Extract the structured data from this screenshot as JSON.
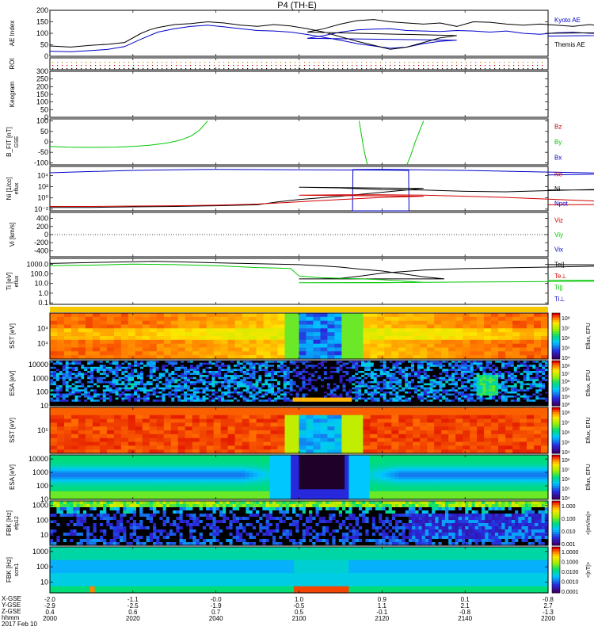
{
  "title": "P4 (TH-E)",
  "date_label": "2017 Feb 10",
  "colors": {
    "kyoto": "#0000c8",
    "themis": "#000000",
    "red": "#d00000",
    "green": "#00c800",
    "blue": "#0000c8"
  },
  "chart_data": [
    {
      "name": "ae",
      "type": "line",
      "ylabel": "AE Index",
      "ylim": [
        0,
        200
      ],
      "yticks": [
        0,
        50,
        100,
        150,
        200
      ],
      "series": [
        {
          "name": "Kyoto AE",
          "color": "#0000c8",
          "x": [
            2000,
            2005,
            2010,
            2014,
            2018,
            2022,
            2026,
            2030,
            2034,
            2038,
            2042,
            2046,
            2050,
            2054,
            2058,
            2062,
            2066,
            2070,
            2074,
            2078,
            2082,
            2086,
            2090,
            2094,
            2098,
            2102,
            2106,
            2110,
            2114,
            2118,
            2122,
            2126,
            2130,
            2134,
            2138,
            2142,
            2146,
            2150,
            2154,
            2158,
            2162,
            2166,
            2170,
            2174,
            2178,
            2182,
            2186,
            2190,
            2194,
            2198,
            2200
          ],
          "y": [
            22,
            20,
            25,
            30,
            42,
            75,
            105,
            120,
            130,
            135,
            128,
            120,
            112,
            110,
            105,
            95,
            82,
            70,
            55,
            45,
            35,
            40,
            55,
            65,
            70,
            78,
            90,
            105,
            115,
            118,
            120,
            112,
            110,
            108,
            112,
            110,
            105,
            110,
            100,
            96,
            102,
            104,
            100,
            98,
            104,
            100,
            94,
            98,
            105,
            95,
            88
          ]
        },
        {
          "name": "Themis AE",
          "color": "#000000",
          "x": [
            2000,
            2005,
            2010,
            2014,
            2018,
            2022,
            2024,
            2026,
            2030,
            2034,
            2038,
            2042,
            2046,
            2050,
            2054,
            2058,
            2062,
            2066,
            2070,
            2074,
            2078,
            2082,
            2086,
            2090,
            2094,
            2098,
            2102,
            2106,
            2110,
            2114,
            2118,
            2122,
            2126,
            2130,
            2134,
            2138,
            2142,
            2146,
            2150,
            2154,
            2158,
            2162,
            2166,
            2170,
            2174,
            2178,
            2182,
            2186,
            2190,
            2194,
            2198,
            2200
          ],
          "y": [
            45,
            40,
            48,
            52,
            60,
            100,
            115,
            125,
            138,
            142,
            150,
            145,
            135,
            130,
            138,
            132,
            120,
            105,
            85,
            65,
            48,
            30,
            40,
            60,
            80,
            90,
            105,
            120,
            140,
            155,
            160,
            150,
            145,
            140,
            145,
            130,
            150,
            148,
            140,
            135,
            140,
            135,
            130,
            138,
            130,
            125,
            130,
            120,
            118,
            110,
            108,
            100
          ]
        }
      ]
    },
    {
      "name": "roi",
      "type": "scatter",
      "ylabel": "ROI",
      "yticks": [],
      "series": []
    },
    {
      "name": "keogram",
      "type": "line",
      "ylabel": "Keogram",
      "ylim": [
        0,
        300
      ],
      "yticks": [
        0,
        50,
        100,
        150,
        200,
        250,
        300
      ],
      "series": []
    },
    {
      "name": "bfit",
      "type": "line",
      "ylabel": "B_FIT [nT]",
      "ylabel_small": "GSE",
      "ylim": [
        -110,
        110
      ],
      "yticks": [
        -100,
        -50,
        0,
        50,
        100
      ],
      "legend": [
        "Bz",
        "By",
        "Bx"
      ],
      "legend_colors": [
        "#d00000",
        "#00c800",
        "#0000c8"
      ],
      "series": [
        {
          "name": "By",
          "color": "#00c800",
          "x": [
            2000,
            2004,
            2008,
            2012,
            2016,
            2020,
            2024,
            2028,
            2030,
            2032,
            2034,
            2036,
            2038
          ],
          "y": [
            -22,
            -25,
            -26,
            -26,
            -25,
            -22,
            -16,
            -6,
            2,
            12,
            28,
            55,
            100
          ]
        },
        {
          "name": "By",
          "color": "#00c800",
          "x": [
            2114.5,
            2115.0,
            2115.5,
            2116.0,
            2116.5
          ],
          "y": [
            100,
            40,
            -20,
            -70,
            -110
          ]
        },
        {
          "name": "By",
          "color": "#00c800",
          "x": [
            2126.0,
            2127.0,
            2128.0,
            2129.0,
            2130.0
          ],
          "y": [
            -110,
            -60,
            0,
            50,
            100
          ]
        }
      ]
    },
    {
      "name": "ni",
      "type": "line",
      "ylabel": "Ni [1/cc]",
      "ylabel_small": "eflux",
      "ylim": [
        0.005,
        400000
      ],
      "log": true,
      "yticks": [
        0.01,
        1,
        100,
        10000
      ],
      "ytick_labels": [
        "10⁻²",
        "10⁰",
        "10²",
        "10⁴"
      ],
      "legend": [
        "Ne",
        "Ni",
        "Npot"
      ],
      "legend_colors": [
        "#d00000",
        "#000000",
        "#0000c8"
      ],
      "series": [
        {
          "name": "Npot",
          "color": "#0000c8",
          "x": [
            2000,
            2010,
            2020,
            2030,
            2040,
            2050,
            2080,
            2086.4,
            2086.5,
            2086.6,
            2112.8,
            2112.9,
            2113.0,
            2120,
            2140,
            2160,
            2180,
            2200
          ],
          "y": [
            30000,
            50000,
            80000,
            100000,
            120000,
            110000,
            90000,
            80000,
            0.005,
            0.005,
            0.005,
            0.005,
            110000,
            120000,
            80000,
            40000,
            20000,
            12000
          ]
        },
        {
          "name": "Ni",
          "color": "#000000",
          "x": [
            2000,
            2010,
            2020,
            2030,
            2040,
            2050,
            2055,
            2060,
            2070,
            2080,
            2090,
            2100,
            2110,
            2120,
            2130,
            2140,
            2150,
            2160,
            2170,
            2180,
            2190,
            2200
          ],
          "y": [
            0.02,
            0.02,
            0.025,
            0.03,
            0.04,
            0.06,
            0.2,
            0.5,
            2,
            10,
            50,
            80,
            60,
            30,
            25,
            15,
            12,
            20,
            30,
            35,
            30,
            25
          ]
        },
        {
          "name": "Ne",
          "color": "#d00000",
          "x": [
            2000,
            2010,
            2020,
            2030,
            2040,
            2050,
            2060,
            2070,
            2080,
            2090,
            2100,
            2110,
            2120,
            2130,
            2140,
            2150,
            2160,
            2170,
            2180,
            2190,
            2200
          ],
          "y": [
            0.03,
            0.03,
            0.035,
            0.04,
            0.05,
            0.08,
            0.2,
            0.5,
            1.2,
            2,
            3,
            3.5,
            3.5,
            3,
            2,
            1.2,
            0.6,
            0.3,
            0.15,
            0.08,
            0.06
          ]
        }
      ]
    },
    {
      "name": "vi",
      "type": "line",
      "ylabel": "Vi [km/s]",
      "ylim": [
        -550,
        550
      ],
      "yticks": [
        -400,
        -200,
        0,
        200,
        400
      ],
      "legend": [
        "Viz",
        "Viy",
        "Vix"
      ],
      "legend_colors": [
        "#d00000",
        "#00c800",
        "#0000c8"
      ],
      "series": []
    },
    {
      "name": "ti",
      "type": "line",
      "ylabel": "Ti [eV]",
      "ylabel_small": "eflux",
      "ylim": [
        0.07,
        4000
      ],
      "log": true,
      "yticks": [
        0.1,
        1,
        10,
        100,
        1000
      ],
      "ytick_labels": [
        "0.1",
        "1.0",
        "10.0",
        "100.0",
        "1000.0"
      ],
      "legend": [
        "Te||",
        "Te⊥",
        "Ti||",
        "Ti⊥"
      ],
      "legend_colors": [
        "#000000",
        "#d00000",
        "#00c800",
        "#0000c8"
      ],
      "series": [
        {
          "name": "Te||",
          "color": "#000000",
          "x": [
            2000,
            2010,
            2020,
            2025,
            2030,
            2040,
            2050,
            2060,
            2065,
            2070,
            2075,
            2080,
            2085,
            2090,
            2095,
            2100,
            2105,
            2110,
            2115,
            2120,
            2130,
            2140,
            2150,
            2160,
            2170,
            2180,
            2190,
            2200
          ],
          "y": [
            1200,
            1500,
            1800,
            2000,
            1800,
            1400,
            1100,
            900,
            700,
            500,
            300,
            200,
            100,
            50,
            30,
            30,
            30,
            35,
            60,
            120,
            250,
            350,
            420,
            500,
            600,
            700,
            800,
            900
          ]
        },
        {
          "name": "Ti||",
          "color": "#00c800",
          "x": [
            2000,
            2010,
            2020,
            2030,
            2040,
            2050,
            2055,
            2058,
            2060,
            2065,
            2070,
            2075,
            2080,
            2085,
            2090,
            2100,
            2110,
            2120,
            2130,
            2140,
            2150,
            2160,
            2170,
            2180,
            2190,
            2200
          ],
          "y": [
            700,
            800,
            1000,
            900,
            700,
            450,
            400,
            350,
            60,
            40,
            35,
            30,
            25,
            18,
            13,
            12,
            12,
            12,
            13,
            14,
            15,
            16,
            17,
            19,
            21,
            22
          ]
        }
      ]
    },
    {
      "name": "sst_i",
      "type": "heatmap",
      "ylabel": "SST [eV]",
      "ytick_labels": [
        "10⁴",
        "10⁴"
      ],
      "colorbar_label": "Eflux, EFU",
      "colorbar_ticks": [
        "10⁸",
        "10⁷",
        "10⁶",
        "10⁵",
        "10⁴"
      ]
    },
    {
      "name": "esa_i",
      "type": "heatmap",
      "ylabel": "ESA [eV]",
      "ylim": [
        10,
        20000
      ],
      "log": true,
      "yticks": [
        10,
        100,
        1000,
        10000
      ],
      "ytick_labels": [
        "10",
        "100",
        "1000",
        "10000"
      ],
      "colorbar_label": "Eflux, EFU",
      "colorbar_ticks": [
        "10⁸",
        "10⁷",
        "10⁶",
        "10⁵",
        "10⁴",
        "10³"
      ]
    },
    {
      "name": "sst_e",
      "type": "heatmap",
      "ylabel": "SST [eV]",
      "ytick_labels": [
        "10⁵"
      ],
      "colorbar_label": "Eflux, EFU",
      "colorbar_ticks": [
        "10⁸",
        "10⁷",
        "10⁶",
        "10⁵",
        "10⁴"
      ]
    },
    {
      "name": "esa_e",
      "type": "heatmap",
      "ylabel": "ESA [eV]",
      "ylim": [
        10,
        20000
      ],
      "log": true,
      "yticks": [
        10,
        100,
        1000,
        10000
      ],
      "ytick_labels": [
        "10",
        "100",
        "1000",
        "10000"
      ],
      "colorbar_label": "Eflux, EFU",
      "colorbar_ticks": [
        "10⁸",
        "10⁷",
        "10⁶",
        "10⁵",
        "10⁴"
      ]
    },
    {
      "name": "fbk_e",
      "type": "heatmap",
      "ylabel": "FBK [Hz]",
      "ylabel_small": "efp12",
      "ylim": [
        2,
        2000
      ],
      "log": true,
      "yticks": [
        10,
        100,
        1000
      ],
      "ytick_labels": [
        "10",
        "100",
        "1000"
      ],
      "colorbar_label": "<|mV/m|>",
      "colorbar_ticks": [
        "1.000",
        "0.100",
        "0.010",
        "0.001"
      ]
    },
    {
      "name": "fbk_b",
      "type": "heatmap",
      "ylabel": "FBK [Hz]",
      "ylabel_small": "scm1",
      "ylim": [
        2,
        2000
      ],
      "log": true,
      "yticks": [
        10,
        100,
        1000
      ],
      "ytick_labels": [
        "10",
        "100",
        "1000"
      ],
      "colorbar_label": "<|nT|>",
      "colorbar_ticks": [
        "1.0000",
        "0.1000",
        "0.0100",
        "0.0010",
        "0.0001"
      ]
    }
  ],
  "footer": {
    "row_labels": [
      "X-GSE",
      "Y-GSE",
      "Z-GSE",
      "hhmm"
    ],
    "x_ticks": [
      2000,
      2020,
      2040,
      2100,
      2120,
      2140,
      2200
    ],
    "x_gse": [
      "-2.0",
      "-1.1",
      "-0.0",
      "1.0",
      "0.9",
      "0.1",
      "-0.8"
    ],
    "y_gse": [
      "-2.9",
      "-2.5",
      "-1.9",
      "-0.5",
      "1.1",
      "2.1",
      "2.7"
    ],
    "z_gse": [
      "0.4",
      "0.6",
      "0.7",
      "0.5",
      "-0.1",
      "-0.8",
      "-1.3"
    ],
    "hhmm": [
      "2000",
      "2020",
      "2040",
      "2100",
      "2120",
      "2140",
      "2200"
    ]
  }
}
